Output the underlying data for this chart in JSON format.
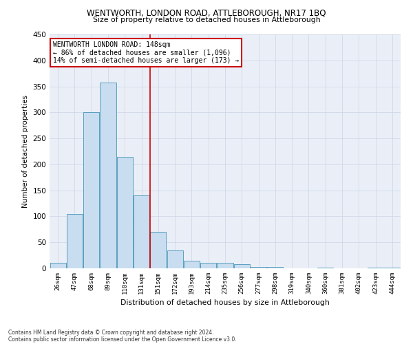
{
  "title1": "WENTWORTH, LONDON ROAD, ATTLEBOROUGH, NR17 1BQ",
  "title2": "Size of property relative to detached houses in Attleborough",
  "xlabel": "Distribution of detached houses by size in Attleborough",
  "ylabel": "Number of detached properties",
  "footnote1": "Contains HM Land Registry data © Crown copyright and database right 2024.",
  "footnote2": "Contains public sector information licensed under the Open Government Licence v3.0.",
  "annotation_line1": "WENTWORTH LONDON ROAD: 148sqm",
  "annotation_line2": "← 86% of detached houses are smaller (1,096)",
  "annotation_line3": "14% of semi-detached houses are larger (173) →",
  "bar_color": "#c8ddef",
  "bar_edge_color": "#5a9fc0",
  "ref_line_color": "#cc0000",
  "ref_line_x": 5.5,
  "categories": [
    "26sqm",
    "47sqm",
    "68sqm",
    "89sqm",
    "110sqm",
    "131sqm",
    "151sqm",
    "172sqm",
    "193sqm",
    "214sqm",
    "235sqm",
    "256sqm",
    "277sqm",
    "298sqm",
    "319sqm",
    "340sqm",
    "360sqm",
    "381sqm",
    "402sqm",
    "423sqm",
    "444sqm"
  ],
  "values": [
    10,
    105,
    300,
    358,
    215,
    140,
    70,
    35,
    15,
    10,
    10,
    8,
    3,
    2,
    0,
    0,
    1,
    0,
    0,
    1,
    1
  ],
  "ylim": [
    0,
    450
  ],
  "yticks": [
    0,
    50,
    100,
    150,
    200,
    250,
    300,
    350,
    400,
    450
  ],
  "grid_color": "#d0d8e8",
  "bg_color": "#eaeff7",
  "annotation_box_color": "#ffffff",
  "annotation_box_edge": "#cc0000",
  "fig_width": 6.0,
  "fig_height": 5.0,
  "dpi": 100
}
